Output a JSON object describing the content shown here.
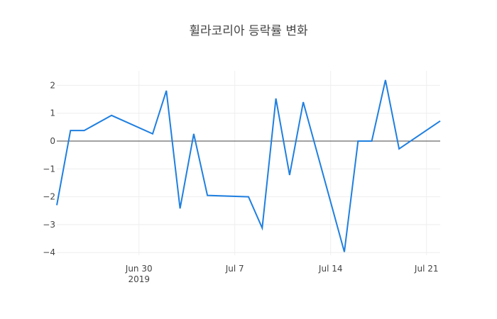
{
  "chart_data": {
    "type": "line",
    "title": "휠라코리아 등락률 변화",
    "xlabel": "",
    "ylabel": "",
    "x": [
      "2019-06-24",
      "2019-06-25",
      "2019-06-26",
      "2019-06-28",
      "2019-07-01",
      "2019-07-02",
      "2019-07-03",
      "2019-07-04",
      "2019-07-05",
      "2019-07-08",
      "2019-07-09",
      "2019-07-10",
      "2019-07-11",
      "2019-07-12",
      "2019-07-15",
      "2019-07-16",
      "2019-07-17",
      "2019-07-18",
      "2019-07-19",
      "2019-07-22"
    ],
    "series": [
      {
        "name": "등락률",
        "color": "#1f7fe0",
        "values": [
          -2.3,
          0.38,
          0.38,
          0.92,
          0.26,
          1.81,
          -2.42,
          0.26,
          -1.95,
          -2.0,
          -3.12,
          1.53,
          -1.22,
          1.4,
          -3.98,
          0.0,
          0.0,
          2.19,
          -0.28,
          0.72
        ]
      }
    ],
    "ylim": [
      -4.15,
      2.5
    ],
    "xlim": [
      "2019-06-24",
      "2019-07-22"
    ],
    "yticks": [
      2,
      1,
      0,
      -1,
      -2,
      -3,
      -4
    ],
    "ytick_labels": [
      "2",
      "1",
      "0",
      "−1",
      "−2",
      "−3",
      "−4"
    ],
    "xticks": [
      {
        "date": "2019-06-30",
        "label": "Jun 30",
        "sublabel": "2019"
      },
      {
        "date": "2019-07-07",
        "label": "Jul 7",
        "sublabel": ""
      },
      {
        "date": "2019-07-14",
        "label": "Jul 14",
        "sublabel": ""
      },
      {
        "date": "2019-07-21",
        "label": "Jul 21",
        "sublabel": ""
      }
    ],
    "grid": true,
    "zeroline": true,
    "legend": "none"
  }
}
